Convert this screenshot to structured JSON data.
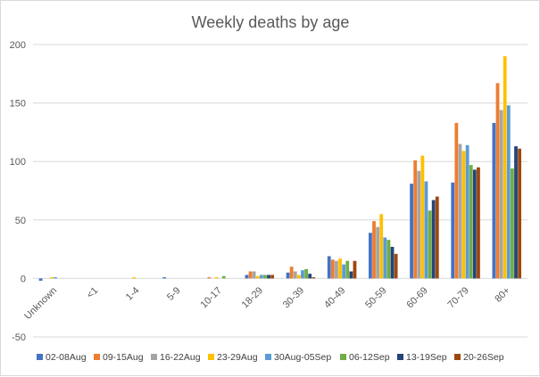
{
  "chart_data": {
    "type": "bar",
    "title": "Weekly deaths by age",
    "xlabel": "",
    "ylabel": "",
    "ylim": [
      -50,
      200
    ],
    "yticks": [
      -50,
      0,
      50,
      100,
      150,
      200
    ],
    "grid": true,
    "legend_position": "bottom",
    "categories": [
      "Unknown",
      "<1",
      "1-4",
      "5-9",
      "10-17",
      "18-29",
      "30-39",
      "40-49",
      "50-59",
      "60-69",
      "70-79",
      "80+"
    ],
    "series": [
      {
        "name": "02-08Aug",
        "color": "#4472C4",
        "values": [
          -2,
          0,
          0,
          1,
          0,
          3,
          5,
          19,
          39,
          81,
          82,
          133
        ]
      },
      {
        "name": "09-15Aug",
        "color": "#ED7D31",
        "values": [
          0,
          0,
          0,
          0,
          1,
          6,
          10,
          16,
          49,
          101,
          133,
          167
        ]
      },
      {
        "name": "16-22Aug",
        "color": "#A5A5A5",
        "values": [
          0,
          0,
          0,
          0,
          0,
          6,
          6,
          15,
          44,
          92,
          115,
          144
        ]
      },
      {
        "name": "23-29Aug",
        "color": "#FFC000",
        "values": [
          1,
          0,
          1,
          0,
          1,
          2,
          3,
          17,
          55,
          105,
          109,
          190
        ]
      },
      {
        "name": "30Aug-05Sep",
        "color": "#5B9BD5",
        "values": [
          1,
          0,
          0,
          0,
          0,
          3,
          7,
          12,
          35,
          83,
          114,
          148
        ]
      },
      {
        "name": "06-12Sep",
        "color": "#70AD47",
        "values": [
          0,
          0,
          0,
          0,
          2,
          3,
          8,
          15,
          33,
          58,
          97,
          94
        ]
      },
      {
        "name": "13-19Sep",
        "color": "#264478",
        "values": [
          0,
          0,
          0,
          0,
          0,
          3,
          4,
          6,
          27,
          67,
          93,
          113
        ]
      },
      {
        "name": "20-26Sep",
        "color": "#9E480E",
        "values": [
          0,
          0,
          0,
          0,
          0,
          3,
          1,
          15,
          21,
          70,
          95,
          111
        ]
      }
    ]
  }
}
